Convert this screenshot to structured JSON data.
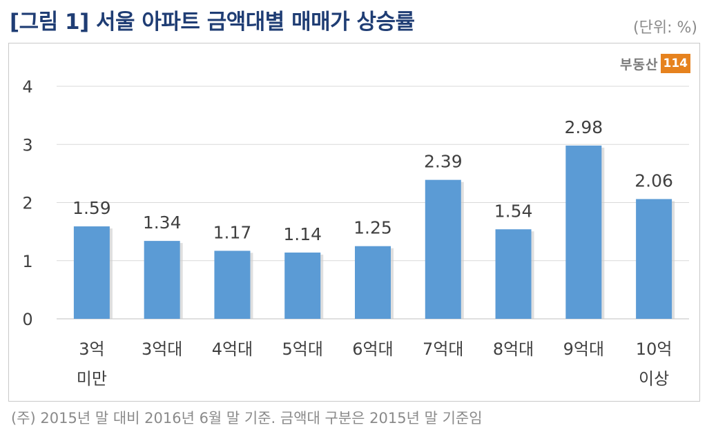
{
  "header": {
    "title": "[그림 1] 서울 아파트 금액대별 매매가 상승률",
    "unit": "(단위: %)"
  },
  "logo": {
    "text": "부동산",
    "badge": "114"
  },
  "footnote": "(주) 2015년 말 대비 2016년 6월 말 기준. 금액대 구분은 2015년 말 기준임",
  "colors": {
    "bar": "#5b9bd5",
    "title": "#1f3d74",
    "grid": "#d9d9d9"
  },
  "chart_data": {
    "type": "bar",
    "title": "[그림 1] 서울 아파트 금액대별 매매가 상승률",
    "xlabel": "",
    "ylabel": "",
    "categories": [
      [
        "3억",
        "미만"
      ],
      [
        "3억대"
      ],
      [
        "4억대"
      ],
      [
        "5억대"
      ],
      [
        "6억대"
      ],
      [
        "7억대"
      ],
      [
        "8억대"
      ],
      [
        "9억대"
      ],
      [
        "10억",
        "이상"
      ]
    ],
    "values": [
      1.59,
      1.34,
      1.17,
      1.14,
      1.25,
      2.39,
      1.54,
      2.98,
      2.06
    ],
    "value_labels": [
      "1.59",
      "1.34",
      "1.17",
      "1.14",
      "1.25",
      "2.39",
      "1.54",
      "2.98",
      "2.06"
    ],
    "yticks": [
      "0",
      "1",
      "2",
      "3",
      "4"
    ],
    "ylim": [
      0,
      4
    ],
    "grid": true,
    "legend": "none"
  }
}
